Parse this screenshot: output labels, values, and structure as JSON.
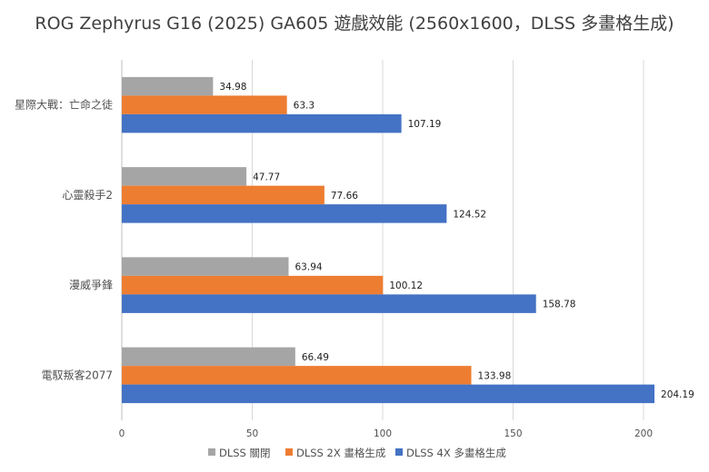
{
  "chart_data": {
    "type": "bar",
    "orientation": "horizontal",
    "title": "ROG Zephyrus G16 (2025) GA605 遊戲效能 (2560x1600，DLSS 多畫格生成)",
    "categories": [
      "星際大戰：亡命之徒",
      "心靈殺手2",
      "漫威爭鋒",
      "電馭叛客2077"
    ],
    "series": [
      {
        "name": "DLSS 關閉",
        "color": "#a5a5a5",
        "values": [
          34.98,
          47.77,
          63.94,
          66.49
        ],
        "labels": [
          "34.98",
          "47.77",
          "63.94",
          "66.49"
        ]
      },
      {
        "name": "DLSS 2X 畫格生成",
        "color": "#ed7d31",
        "values": [
          63.3,
          77.66,
          100.12,
          133.98
        ],
        "labels": [
          "63.3",
          "77.66",
          "100.12",
          "133.98"
        ]
      },
      {
        "name": "DLSS 4X 多畫格生成",
        "color": "#4472c4",
        "values": [
          107.19,
          124.52,
          158.78,
          204.19
        ],
        "labels": [
          "107.19",
          "124.52",
          "158.78",
          "204.19"
        ]
      }
    ],
    "xlim": [
      0,
      200
    ],
    "ticks": [
      "0",
      "50",
      "100",
      "150",
      "200"
    ],
    "grid": true,
    "legend": "bottom"
  }
}
